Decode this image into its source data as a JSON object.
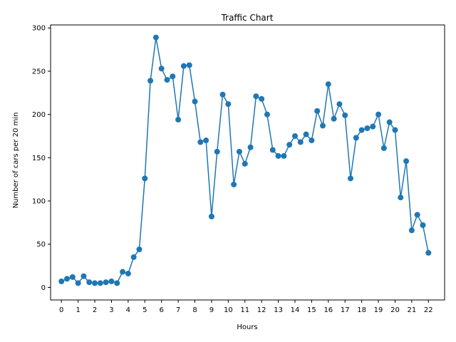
{
  "chart_data": {
    "type": "line",
    "title": "Traffic Chart",
    "xlabel": "Hours",
    "ylabel": "Number of cars per 20 min",
    "xlim": [
      -0.65,
      22.97
    ],
    "ylim": [
      -14.5,
      303.5
    ],
    "xticks": [
      0,
      1,
      2,
      3,
      4,
      5,
      6,
      7,
      8,
      9,
      10,
      11,
      12,
      13,
      14,
      15,
      16,
      17,
      18,
      19,
      20,
      21,
      22
    ],
    "yticks": [
      0,
      50,
      100,
      150,
      200,
      250,
      300
    ],
    "grid": false,
    "legend": "none",
    "color": "#1f77b4",
    "series": [
      {
        "x": [
          0,
          0.333,
          0.667,
          1,
          1.333,
          1.667,
          2,
          2.333,
          2.667,
          3,
          3.333,
          3.667,
          4,
          4.333,
          4.667,
          5,
          5.333,
          5.667,
          6,
          6.333,
          6.667,
          7,
          7.333,
          7.667,
          8,
          8.333,
          8.667,
          9,
          9.333,
          9.667,
          10,
          10.333,
          10.667,
          11,
          11.333,
          11.667,
          12,
          12.333,
          12.667,
          13,
          13.333,
          13.667,
          14,
          14.333,
          14.667,
          15,
          15.333,
          15.667,
          16,
          16.333,
          16.667,
          17,
          17.333,
          17.667,
          18,
          18.333,
          18.667,
          19,
          19.333,
          19.667,
          20,
          20.333,
          20.667,
          21,
          21.333,
          21.667,
          22
        ],
        "values": [
          7,
          10,
          12,
          5,
          13,
          6,
          5,
          5,
          6,
          7,
          5,
          18,
          16,
          35,
          44,
          126,
          239,
          289,
          253,
          240,
          244,
          194,
          256,
          257,
          215,
          168,
          170,
          82,
          157,
          223,
          212,
          119,
          157,
          143,
          162,
          221,
          218,
          200,
          159,
          152,
          152,
          165,
          175,
          168,
          177,
          170,
          204,
          187,
          235,
          195,
          212,
          199,
          126,
          173,
          182,
          184,
          186,
          200,
          161,
          191,
          182,
          104,
          146,
          66,
          84,
          72,
          40
        ]
      }
    ]
  }
}
